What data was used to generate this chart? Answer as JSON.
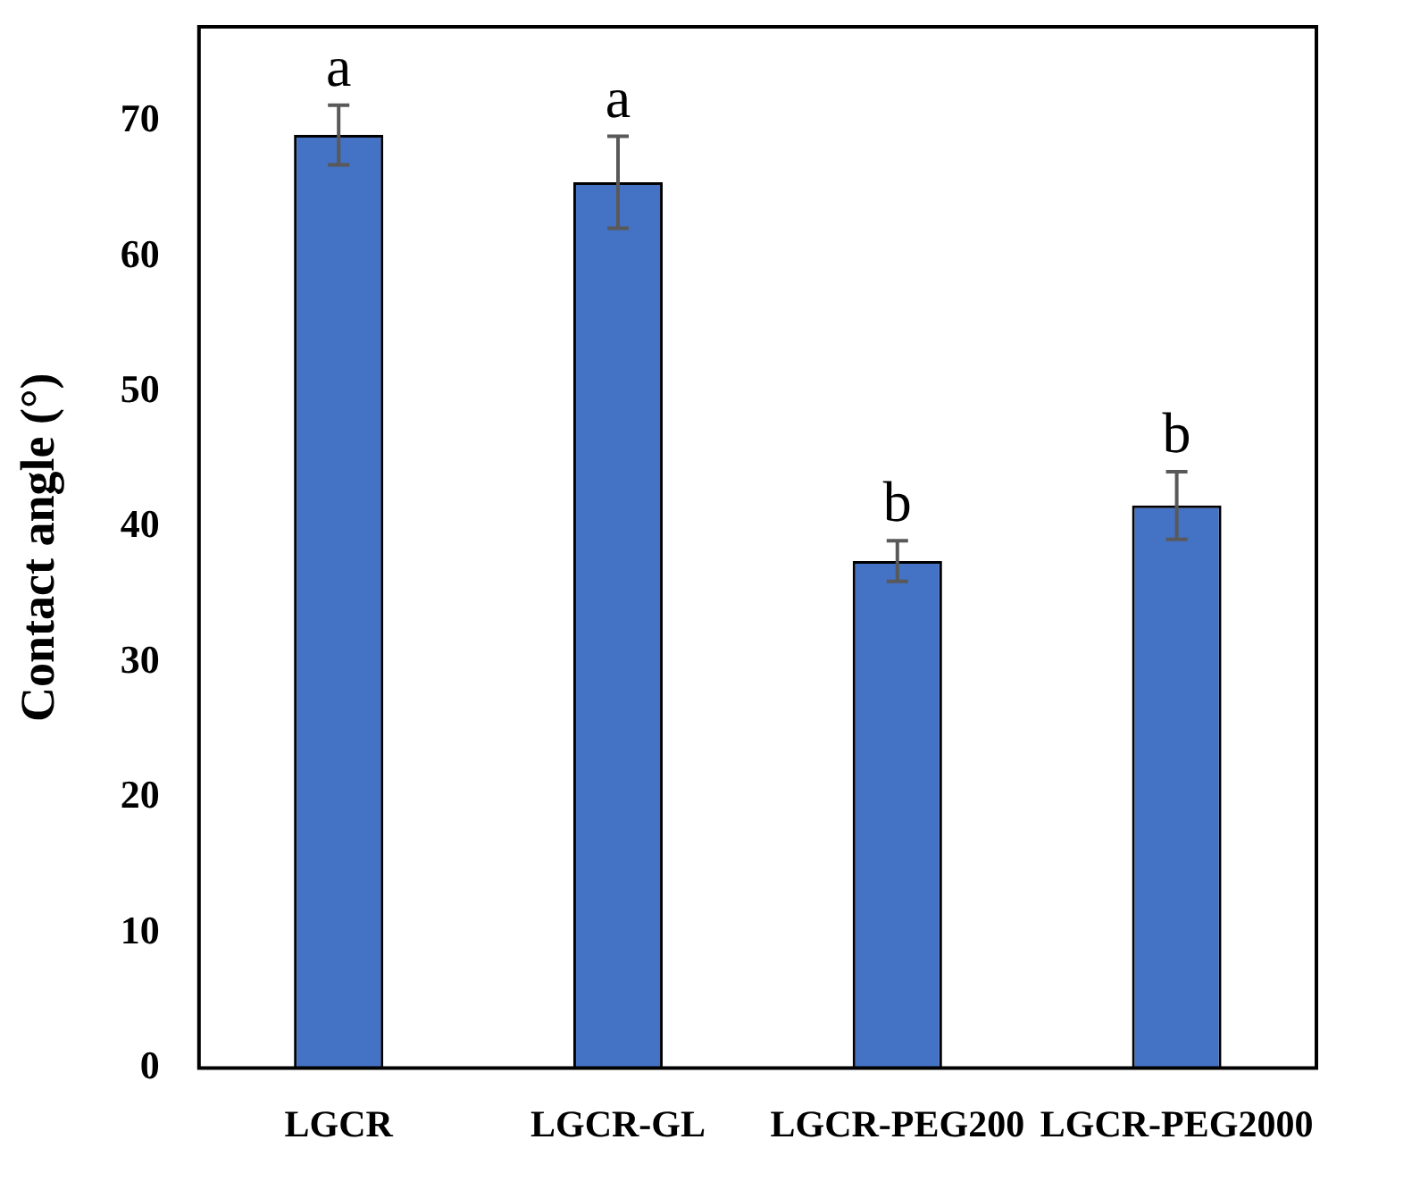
{
  "chart_data": {
    "type": "bar",
    "ylabel": "Contact angle (°)",
    "categories": [
      "LGCR",
      "LGCR-GL",
      "LGCR-PEG200",
      "LGCR-PEG2000"
    ],
    "values": [
      69,
      65.5,
      37.5,
      41.6
    ],
    "errors": [
      2.2,
      3.4,
      1.5,
      2.5
    ],
    "color": "#4472c4",
    "ylim": [
      0,
      77
    ],
    "yticks": [
      0,
      10,
      20,
      30,
      40,
      50,
      60,
      70
    ],
    "grid": false,
    "legend": false,
    "annotations": [
      "a",
      "a",
      "b",
      "b"
    ]
  }
}
